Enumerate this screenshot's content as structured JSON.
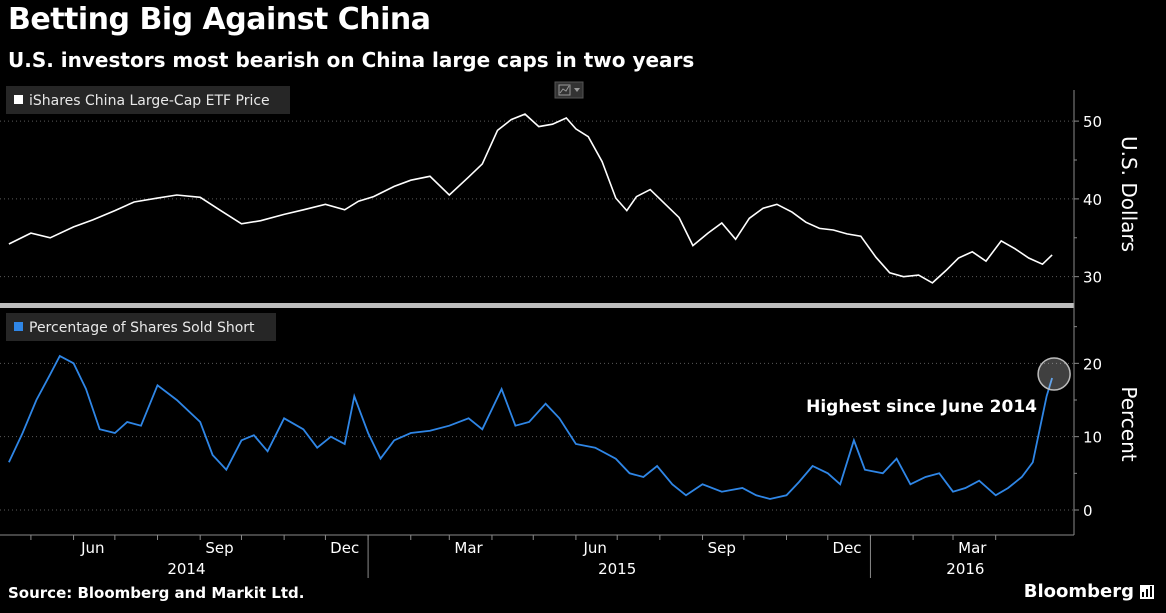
{
  "header": {
    "title": "Betting Big Against China",
    "subtitle": "U.S. investors most bearish on China large caps in two years"
  },
  "chart_data": [
    {
      "type": "line",
      "legend": "iShares China Large-Cap ETF Price",
      "ylabel": "U.S. Dollars",
      "yticks": [
        30,
        40,
        50
      ],
      "ylim": [
        27,
        54
      ],
      "color": "#ffffff",
      "x_months": [
        "2014-04",
        "2014-05",
        "2014-06",
        "2014-07",
        "2014-08",
        "2014-09",
        "2014-10",
        "2014-11",
        "2014-12",
        "2015-01",
        "2015-02",
        "2015-03",
        "2015-04",
        "2015-05",
        "2015-06",
        "2015-07",
        "2015-08",
        "2015-09",
        "2015-10",
        "2015-11",
        "2015-12",
        "2016-01",
        "2016-02",
        "2016-03",
        "2016-04"
      ],
      "series": [
        {
          "points": [
            [
              "2014-04-15",
              34.2
            ],
            [
              "2014-05-01",
              35.6
            ],
            [
              "2014-05-15",
              35.0
            ],
            [
              "2014-06-01",
              36.4
            ],
            [
              "2014-06-15",
              37.3
            ],
            [
              "2014-07-01",
              38.5
            ],
            [
              "2014-07-15",
              39.6
            ],
            [
              "2014-08-01",
              40.1
            ],
            [
              "2014-08-15",
              40.5
            ],
            [
              "2014-09-01",
              40.2
            ],
            [
              "2014-09-15",
              38.6
            ],
            [
              "2014-10-01",
              36.8
            ],
            [
              "2014-10-15",
              37.2
            ],
            [
              "2014-11-01",
              38.0
            ],
            [
              "2014-11-15",
              38.6
            ],
            [
              "2014-12-01",
              39.3
            ],
            [
              "2014-12-15",
              38.6
            ],
            [
              "2014-12-25",
              39.7
            ],
            [
              "2015-01-05",
              40.3
            ],
            [
              "2015-01-20",
              41.6
            ],
            [
              "2015-02-01",
              42.4
            ],
            [
              "2015-02-15",
              42.9
            ],
            [
              "2015-03-01",
              40.5
            ],
            [
              "2015-03-15",
              42.8
            ],
            [
              "2015-03-25",
              44.5
            ],
            [
              "2015-04-05",
              48.8
            ],
            [
              "2015-04-15",
              50.2
            ],
            [
              "2015-04-25",
              50.9
            ],
            [
              "2015-05-05",
              49.3
            ],
            [
              "2015-05-15",
              49.6
            ],
            [
              "2015-05-25",
              50.4
            ],
            [
              "2015-06-01",
              49.0
            ],
            [
              "2015-06-10",
              48.0
            ],
            [
              "2015-06-20",
              44.8
            ],
            [
              "2015-06-30",
              40.1
            ],
            [
              "2015-07-08",
              38.5
            ],
            [
              "2015-07-15",
              40.3
            ],
            [
              "2015-07-25",
              41.2
            ],
            [
              "2015-08-05",
              39.3
            ],
            [
              "2015-08-15",
              37.6
            ],
            [
              "2015-08-25",
              34.0
            ],
            [
              "2015-09-05",
              35.6
            ],
            [
              "2015-09-15",
              36.9
            ],
            [
              "2015-09-25",
              34.8
            ],
            [
              "2015-10-05",
              37.5
            ],
            [
              "2015-10-15",
              38.8
            ],
            [
              "2015-10-25",
              39.3
            ],
            [
              "2015-11-05",
              38.3
            ],
            [
              "2015-11-15",
              37.0
            ],
            [
              "2015-11-25",
              36.2
            ],
            [
              "2015-12-05",
              36.0
            ],
            [
              "2015-12-15",
              35.5
            ],
            [
              "2015-12-25",
              35.2
            ],
            [
              "2016-01-05",
              32.5
            ],
            [
              "2016-01-15",
              30.5
            ],
            [
              "2016-01-25",
              30.0
            ],
            [
              "2016-02-05",
              30.2
            ],
            [
              "2016-02-15",
              29.2
            ],
            [
              "2016-02-25",
              30.8
            ],
            [
              "2016-03-05",
              32.4
            ],
            [
              "2016-03-15",
              33.2
            ],
            [
              "2016-03-25",
              32.0
            ],
            [
              "2016-04-05",
              34.6
            ],
            [
              "2016-04-15",
              33.6
            ],
            [
              "2016-04-25",
              32.4
            ],
            [
              "2016-05-05",
              31.6
            ],
            [
              "2016-05-12",
              32.8
            ]
          ]
        }
      ]
    },
    {
      "type": "line",
      "legend": "Percentage of Shares Sold Short",
      "ylabel": "Percent",
      "yticks": [
        0,
        10,
        20
      ],
      "ylim": [
        -3,
        27
      ],
      "color": "#2f86e6",
      "series": [
        {
          "points": [
            [
              "2014-04-15",
              6.5
            ],
            [
              "2014-04-25",
              10.5
            ],
            [
              "2014-05-05",
              15.0
            ],
            [
              "2014-05-15",
              18.5
            ],
            [
              "2014-05-22",
              21.0
            ],
            [
              "2014-06-01",
              20.0
            ],
            [
              "2014-06-10",
              16.5
            ],
            [
              "2014-06-20",
              11.0
            ],
            [
              "2014-07-01",
              10.5
            ],
            [
              "2014-07-10",
              12.0
            ],
            [
              "2014-07-20",
              11.5
            ],
            [
              "2014-08-01",
              17.0
            ],
            [
              "2014-08-15",
              15.0
            ],
            [
              "2014-09-01",
              12.0
            ],
            [
              "2014-09-10",
              7.5
            ],
            [
              "2014-09-20",
              5.5
            ],
            [
              "2014-10-01",
              9.5
            ],
            [
              "2014-10-10",
              10.2
            ],
            [
              "2014-10-20",
              8.0
            ],
            [
              "2014-11-01",
              12.5
            ],
            [
              "2014-11-15",
              11.0
            ],
            [
              "2014-11-25",
              8.5
            ],
            [
              "2014-12-05",
              10.0
            ],
            [
              "2014-12-15",
              9.0
            ],
            [
              "2014-12-22",
              15.5
            ],
            [
              "2015-01-01",
              10.5
            ],
            [
              "2015-01-10",
              7.0
            ],
            [
              "2015-01-20",
              9.5
            ],
            [
              "2015-02-01",
              10.5
            ],
            [
              "2015-02-15",
              10.8
            ],
            [
              "2015-03-01",
              11.5
            ],
            [
              "2015-03-15",
              12.5
            ],
            [
              "2015-03-25",
              11.0
            ],
            [
              "2015-04-08",
              16.5
            ],
            [
              "2015-04-18",
              11.5
            ],
            [
              "2015-04-28",
              12.0
            ],
            [
              "2015-05-10",
              14.5
            ],
            [
              "2015-05-20",
              12.5
            ],
            [
              "2015-06-01",
              9.0
            ],
            [
              "2015-06-15",
              8.5
            ],
            [
              "2015-06-30",
              7.0
            ],
            [
              "2015-07-10",
              5.0
            ],
            [
              "2015-07-20",
              4.5
            ],
            [
              "2015-07-30",
              6.0
            ],
            [
              "2015-08-10",
              3.5
            ],
            [
              "2015-08-20",
              2.0
            ],
            [
              "2015-09-01",
              3.5
            ],
            [
              "2015-09-15",
              2.5
            ],
            [
              "2015-09-30",
              3.0
            ],
            [
              "2015-10-10",
              2.0
            ],
            [
              "2015-10-20",
              1.5
            ],
            [
              "2015-11-01",
              2.0
            ],
            [
              "2015-11-10",
              3.8
            ],
            [
              "2015-11-20",
              6.0
            ],
            [
              "2015-12-01",
              5.0
            ],
            [
              "2015-12-10",
              3.5
            ],
            [
              "2015-12-20",
              9.5
            ],
            [
              "2015-12-28",
              5.5
            ],
            [
              "2016-01-10",
              5.0
            ],
            [
              "2016-01-20",
              7.0
            ],
            [
              "2016-01-30",
              3.5
            ],
            [
              "2016-02-10",
              4.5
            ],
            [
              "2016-02-20",
              5.0
            ],
            [
              "2016-03-01",
              2.5
            ],
            [
              "2016-03-10",
              3.0
            ],
            [
              "2016-03-20",
              4.0
            ],
            [
              "2016-04-01",
              2.0
            ],
            [
              "2016-04-10",
              3.0
            ],
            [
              "2016-04-20",
              4.5
            ],
            [
              "2016-04-28",
              6.5
            ],
            [
              "2016-05-03",
              11.0
            ],
            [
              "2016-05-08",
              15.5
            ],
            [
              "2016-05-12",
              18.0
            ]
          ]
        }
      ],
      "annotation": "Highest since June 2014"
    }
  ],
  "xaxis": {
    "month_labels": [
      "Jun",
      "Sep",
      "Dec",
      "Mar",
      "Jun",
      "Sep",
      "Dec",
      "Mar"
    ],
    "year_labels": [
      "2014",
      "2015",
      "2016"
    ]
  },
  "footer": {
    "source": "Source: Bloomberg and Markit Ltd.",
    "brand": "Bloomberg"
  }
}
